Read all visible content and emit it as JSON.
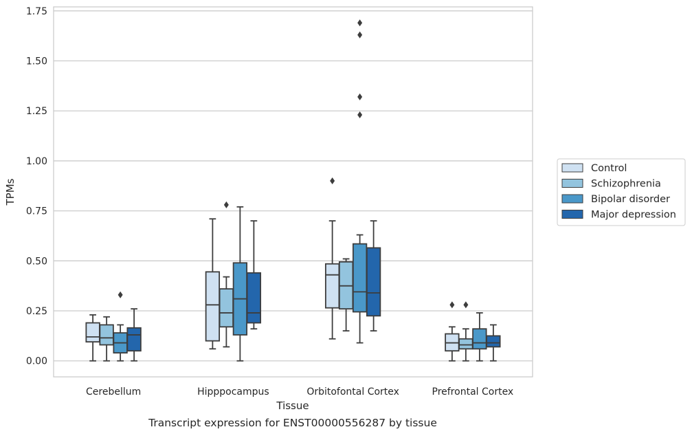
{
  "caption": "Transcript expression for ENST00000556287 by tissue",
  "chart_data": {
    "type": "box",
    "title": "",
    "xlabel": "Tissue",
    "ylabel": "TPMs",
    "ylim": [
      -0.08,
      1.77
    ],
    "yticks": [
      "0.00",
      "0.25",
      "0.50",
      "0.75",
      "1.00",
      "1.25",
      "1.50",
      "1.75"
    ],
    "ytick_values": [
      0,
      0.25,
      0.5,
      0.75,
      1.0,
      1.25,
      1.5,
      1.75
    ],
    "grid": "horizontal",
    "legend_position": "right",
    "categories": [
      "Cerebellum",
      "Hipppocampus",
      "Orbitofontal Cortex",
      "Prefrontal Cortex"
    ],
    "series": [
      {
        "name": "Control",
        "color": "#cfe1f2",
        "boxes": [
          {
            "whislo": 0.0,
            "q1": 0.095,
            "med": 0.12,
            "q3": 0.19,
            "whishi": 0.23,
            "fliers": []
          },
          {
            "whislo": 0.06,
            "q1": 0.1,
            "med": 0.28,
            "q3": 0.445,
            "whishi": 0.71,
            "fliers": []
          },
          {
            "whislo": 0.11,
            "q1": 0.265,
            "med": 0.43,
            "q3": 0.485,
            "whishi": 0.7,
            "fliers": [
              0.9
            ]
          },
          {
            "whislo": 0.0,
            "q1": 0.05,
            "med": 0.09,
            "q3": 0.135,
            "whishi": 0.17,
            "fliers": [
              0.28
            ]
          }
        ]
      },
      {
        "name": "Schizophrenia",
        "color": "#93c4de",
        "boxes": [
          {
            "whislo": 0.0,
            "q1": 0.08,
            "med": 0.115,
            "q3": 0.18,
            "whishi": 0.22,
            "fliers": []
          },
          {
            "whislo": 0.07,
            "q1": 0.17,
            "med": 0.24,
            "q3": 0.36,
            "whishi": 0.42,
            "fliers": [
              0.78
            ]
          },
          {
            "whislo": 0.15,
            "q1": 0.26,
            "med": 0.375,
            "q3": 0.495,
            "whishi": 0.51,
            "fliers": []
          },
          {
            "whislo": 0.0,
            "q1": 0.06,
            "med": 0.08,
            "q3": 0.11,
            "whishi": 0.16,
            "fliers": [
              0.28
            ]
          }
        ]
      },
      {
        "name": "Bipolar disorder",
        "color": "#4a98c9",
        "boxes": [
          {
            "whislo": 0.0,
            "q1": 0.04,
            "med": 0.09,
            "q3": 0.14,
            "whishi": 0.18,
            "fliers": [
              0.33
            ]
          },
          {
            "whislo": 0.0,
            "q1": 0.13,
            "med": 0.31,
            "q3": 0.49,
            "whishi": 0.77,
            "fliers": []
          },
          {
            "whislo": 0.09,
            "q1": 0.245,
            "med": 0.345,
            "q3": 0.585,
            "whishi": 0.63,
            "fliers": [
              1.23,
              1.32,
              1.63,
              1.69
            ]
          },
          {
            "whislo": 0.0,
            "q1": 0.06,
            "med": 0.09,
            "q3": 0.16,
            "whishi": 0.24,
            "fliers": []
          }
        ]
      },
      {
        "name": "Major depression",
        "color": "#2366ac",
        "boxes": [
          {
            "whislo": 0.0,
            "q1": 0.05,
            "med": 0.13,
            "q3": 0.165,
            "whishi": 0.26,
            "fliers": []
          },
          {
            "whislo": 0.16,
            "q1": 0.19,
            "med": 0.24,
            "q3": 0.44,
            "whishi": 0.7,
            "fliers": []
          },
          {
            "whislo": 0.15,
            "q1": 0.225,
            "med": 0.34,
            "q3": 0.565,
            "whishi": 0.7,
            "fliers": []
          },
          {
            "whislo": 0.0,
            "q1": 0.07,
            "med": 0.09,
            "q3": 0.125,
            "whishi": 0.18,
            "fliers": []
          }
        ]
      }
    ]
  }
}
